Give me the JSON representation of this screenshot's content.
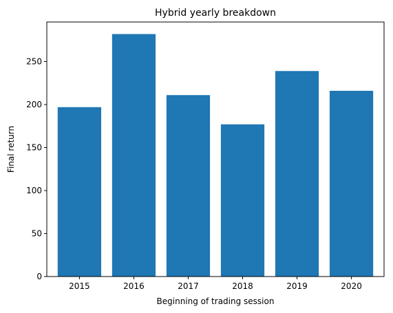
{
  "chart_data": {
    "type": "bar",
    "title": "Hybrid yearly breakdown",
    "xlabel": "Beginning of trading session",
    "ylabel": "Final return",
    "categories": [
      "2015",
      "2016",
      "2017",
      "2018",
      "2019",
      "2020"
    ],
    "values": [
      197,
      282,
      211,
      177,
      239,
      216
    ],
    "ylim": [
      0,
      296
    ],
    "yticks": [
      0,
      50,
      100,
      150,
      200,
      250
    ],
    "grid": false,
    "bar_color": "#1f77b4"
  }
}
